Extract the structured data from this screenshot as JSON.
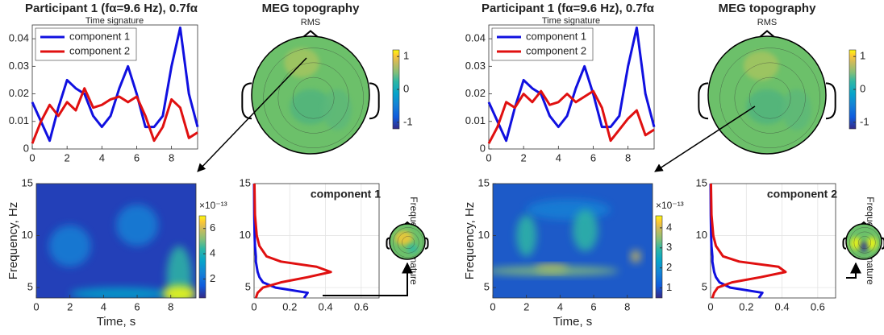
{
  "chart_data": [
    {
      "type": "line",
      "title": "Participant 1 (fα=9.6 Hz), 0.7fα",
      "subtitle": "Time signature",
      "x": [
        0,
        0.5,
        1,
        1.5,
        2,
        2.5,
        3,
        3.5,
        4,
        4.5,
        5,
        5.5,
        6,
        6.5,
        7,
        7.5,
        8,
        8.5,
        9,
        9.5
      ],
      "xlim": [
        0,
        9.5
      ],
      "xticks": [
        0,
        2,
        4,
        6,
        8
      ],
      "ylim": [
        0,
        0.045
      ],
      "yticks": [
        0,
        0.01,
        0.02,
        0.03,
        0.04
      ],
      "legend": "upper left",
      "series": [
        {
          "name": "component 1",
          "color": "#1010e0",
          "values": [
            0.017,
            0.01,
            0.003,
            0.015,
            0.025,
            0.022,
            0.02,
            0.012,
            0.008,
            0.012,
            0.022,
            0.03,
            0.02,
            0.008,
            0.008,
            0.012,
            0.03,
            0.044,
            0.02,
            0.008
          ]
        },
        {
          "name": "component 2",
          "color": "#e01010",
          "values": [
            0.002,
            0.01,
            0.016,
            0.012,
            0.017,
            0.014,
            0.022,
            0.015,
            0.016,
            0.018,
            0.019,
            0.017,
            0.019,
            0.012,
            0.003,
            0.008,
            0.018,
            0.015,
            0.004,
            0.006
          ]
        }
      ]
    },
    {
      "type": "topography",
      "title": "MEG topography",
      "subtitle": "RMS",
      "clim": [
        -1.2,
        1.2
      ],
      "cticks": [
        -1,
        0,
        1
      ]
    },
    {
      "type": "heatmap",
      "xlabel": "Time, s",
      "ylabel": "Frequency, Hz",
      "xlim": [
        0,
        9.5
      ],
      "xticks": [
        0,
        2,
        4,
        6,
        8
      ],
      "ylim": [
        4,
        15
      ],
      "yticks": [
        5,
        10,
        15
      ],
      "clim": [
        0.5,
        7
      ],
      "cticks": [
        2,
        4,
        6
      ],
      "scale_label": "×10⁻¹³"
    },
    {
      "type": "line",
      "orientation": "horizontal",
      "ylabel": "Frequency signature",
      "annotation": "component 1",
      "annotation_color": "#1010e0",
      "y": [
        4,
        4.5,
        5,
        5.5,
        6,
        6.5,
        7,
        7.5,
        8,
        9,
        10,
        12,
        15
      ],
      "xlim": [
        0,
        0.7
      ],
      "xticks": [
        0,
        0.2,
        0.4,
        0.6
      ],
      "ylim": [
        4,
        15
      ],
      "yticks": [
        5,
        10,
        15
      ],
      "series": [
        {
          "color": "#1010e0",
          "values": [
            0.28,
            0.3,
            0.12,
            0.05,
            0.03,
            0.02,
            0.015,
            0.01,
            0.01,
            0.005,
            0.003,
            0.001,
            0
          ]
        },
        {
          "color": "#e01010",
          "values": [
            0.01,
            0.02,
            0.05,
            0.15,
            0.3,
            0.43,
            0.35,
            0.15,
            0.07,
            0.03,
            0.015,
            0.005,
            0.002
          ]
        }
      ]
    },
    {
      "type": "line",
      "title": "Participant 1 (fα=9.6 Hz), 0.7fα",
      "subtitle": "Time signature",
      "x": [
        0,
        0.5,
        1,
        1.5,
        2,
        2.5,
        3,
        3.5,
        4,
        4.5,
        5,
        5.5,
        6,
        6.5,
        7,
        7.5,
        8,
        8.5,
        9,
        9.5
      ],
      "xlim": [
        0,
        9.5
      ],
      "xticks": [
        0,
        2,
        4,
        6,
        8
      ],
      "ylim": [
        0,
        0.045
      ],
      "yticks": [
        0,
        0.01,
        0.02,
        0.03,
        0.04
      ],
      "legend": "upper left",
      "series": [
        {
          "name": "component 1",
          "color": "#1010e0",
          "values": [
            0.017,
            0.01,
            0.003,
            0.015,
            0.025,
            0.022,
            0.02,
            0.012,
            0.008,
            0.012,
            0.022,
            0.03,
            0.02,
            0.008,
            0.008,
            0.012,
            0.03,
            0.044,
            0.02,
            0.008
          ]
        },
        {
          "name": "component 2",
          "color": "#e01010",
          "values": [
            0.002,
            0.008,
            0.017,
            0.015,
            0.02,
            0.017,
            0.021,
            0.016,
            0.017,
            0.02,
            0.017,
            0.019,
            0.021,
            0.015,
            0.003,
            0.007,
            0.011,
            0.014,
            0.005,
            0.007
          ]
        }
      ]
    },
    {
      "type": "topography",
      "title": "MEG topography",
      "subtitle": "RMS",
      "clim": [
        -1.2,
        1.2
      ],
      "cticks": [
        -1,
        0,
        1
      ]
    },
    {
      "type": "heatmap",
      "xlabel": "Time, s",
      "ylabel": "Frequency, Hz",
      "xlim": [
        0,
        9.5
      ],
      "xticks": [
        0,
        2,
        4,
        6,
        8
      ],
      "ylim": [
        4,
        15
      ],
      "yticks": [
        5,
        10,
        15
      ],
      "clim": [
        0.5,
        4.6
      ],
      "cticks": [
        1,
        2,
        3,
        4
      ],
      "scale_label": "×10⁻¹³"
    },
    {
      "type": "line",
      "orientation": "horizontal",
      "ylabel": "Frequency signature",
      "annotation": "component 2",
      "annotation_color": "#e01010",
      "y": [
        4,
        4.5,
        5,
        5.5,
        6,
        6.5,
        7,
        7.5,
        8,
        9,
        10,
        12,
        15
      ],
      "xlim": [
        0,
        0.7
      ],
      "xticks": [
        0,
        0.2,
        0.4,
        0.6
      ],
      "ylim": [
        4,
        15
      ],
      "yticks": [
        5,
        10,
        15
      ],
      "series": [
        {
          "color": "#1010e0",
          "values": [
            0.27,
            0.29,
            0.11,
            0.05,
            0.03,
            0.02,
            0.015,
            0.01,
            0.01,
            0.005,
            0.003,
            0.001,
            0
          ]
        },
        {
          "color": "#e01010",
          "values": [
            0.01,
            0.02,
            0.04,
            0.12,
            0.28,
            0.42,
            0.38,
            0.16,
            0.07,
            0.03,
            0.015,
            0.005,
            0.002
          ]
        }
      ]
    }
  ]
}
